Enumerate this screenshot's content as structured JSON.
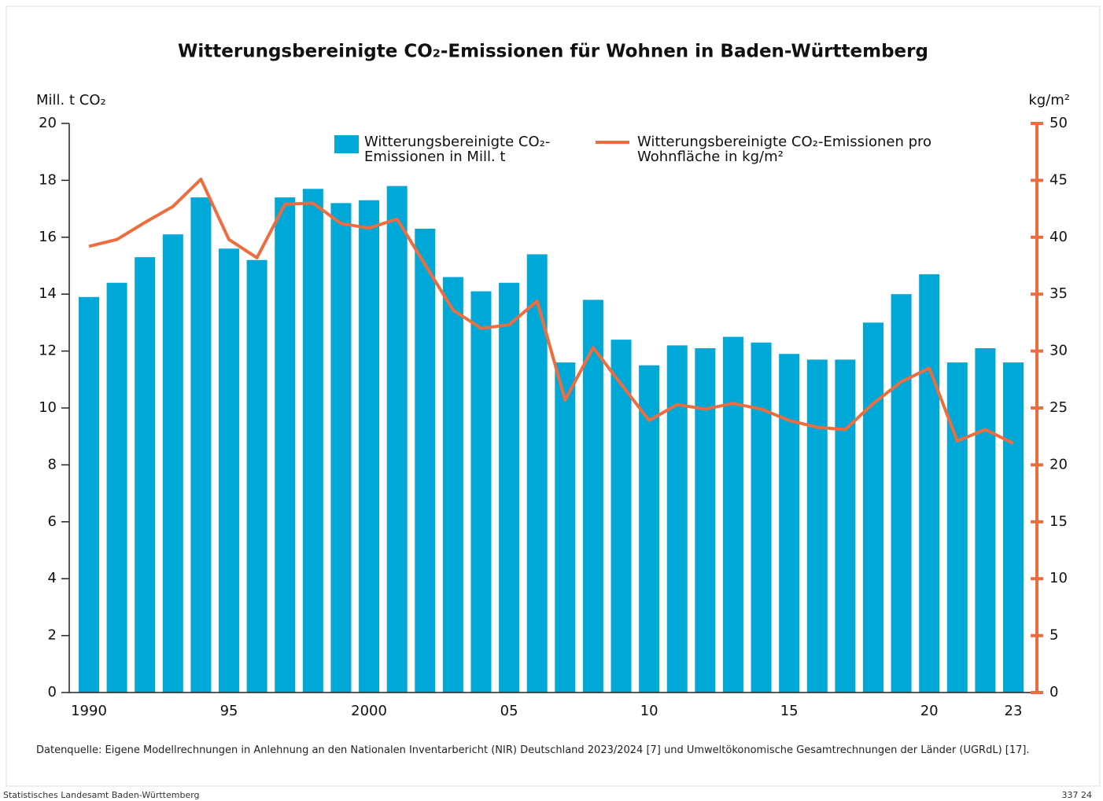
{
  "chart_data": {
    "type": "bar",
    "title": "Witterungsbereinigte CO₂-Emissionen für Wohnen in Baden-Württemberg",
    "y_label": "Mill. t CO₂",
    "y2_label": "kg/m²",
    "categories": [
      "1990",
      null,
      null,
      null,
      null,
      "95",
      null,
      null,
      null,
      null,
      "2000",
      null,
      null,
      null,
      null,
      "05",
      null,
      null,
      null,
      null,
      "10",
      null,
      null,
      null,
      null,
      "15",
      null,
      null,
      null,
      null,
      "20",
      null,
      null,
      "23"
    ],
    "series": [
      {
        "name": "Witterungsbereinigte CO₂-Emissionen in Mill. t",
        "type": "bar",
        "color": "#00a8d8",
        "axis": "y",
        "values": [
          13.9,
          14.4,
          15.3,
          16.1,
          17.4,
          15.6,
          15.2,
          17.4,
          17.7,
          17.2,
          17.3,
          17.8,
          16.3,
          14.6,
          14.1,
          14.4,
          15.4,
          11.6,
          13.8,
          12.4,
          11.5,
          12.2,
          12.1,
          12.5,
          12.3,
          11.9,
          11.7,
          11.7,
          13.0,
          14.0,
          14.7,
          11.6,
          12.1,
          11.6
        ]
      },
      {
        "name": "Witterungsbereinigte CO₂-Emissionen pro Wohnfläche in kg/m²",
        "type": "line",
        "color": "#ee6d3f",
        "axis": "y2",
        "values": [
          39.2,
          39.8,
          41.3,
          42.7,
          45.1,
          39.8,
          38.2,
          42.9,
          43.0,
          41.2,
          40.8,
          41.6,
          37.6,
          33.6,
          32.0,
          32.3,
          34.4,
          25.7,
          30.3,
          27.1,
          23.9,
          25.3,
          24.9,
          25.4,
          24.9,
          23.9,
          23.3,
          23.1,
          25.4,
          27.3,
          28.5,
          22.1,
          23.1,
          21.9
        ]
      }
    ],
    "ylim": [
      0,
      20
    ],
    "yticks": [
      0,
      2,
      4,
      6,
      8,
      10,
      12,
      14,
      16,
      18,
      20
    ],
    "y2lim": [
      0,
      50
    ],
    "y2ticks": [
      0,
      5,
      10,
      15,
      20,
      25,
      30,
      35,
      40,
      45,
      50
    ],
    "source": "Datenquelle: Eigene Modellrechnungen in Anlehnung an den Nationalen Inventarbericht (NIR) Deutschland 2023/2024 [7] und Umweltökonomische Gesamtrechnungen der Länder (UGRdL) [17].",
    "publisher": "Statistisches Landesamt Baden-Württemberg",
    "chart_id": "337 24"
  }
}
